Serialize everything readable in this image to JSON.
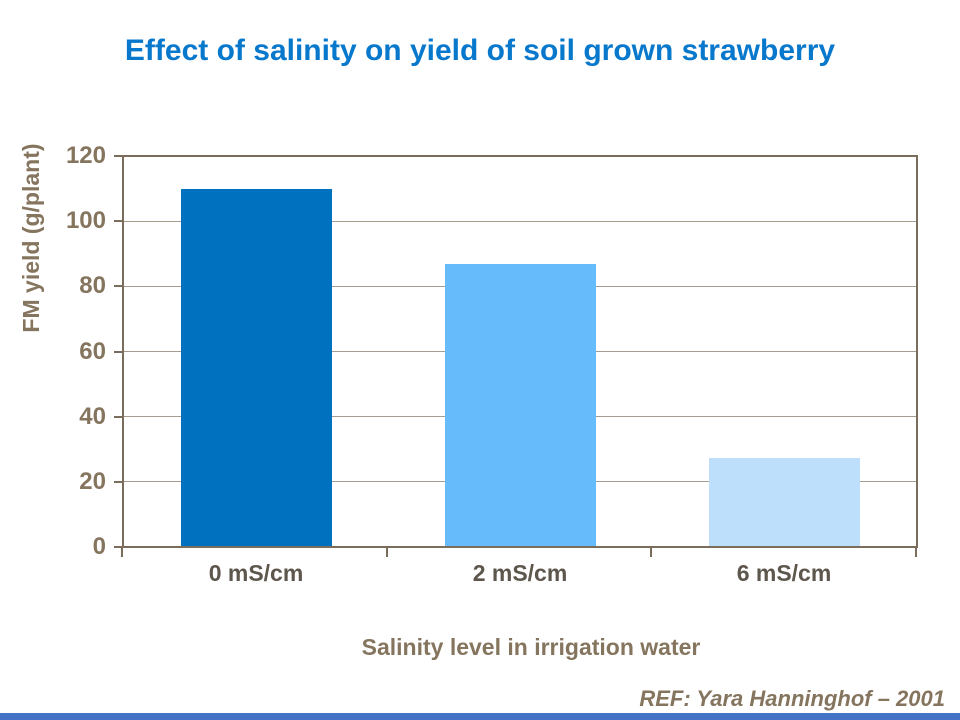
{
  "slide": {
    "background": "#FFFFFF",
    "footer": {
      "ref": "REF: Yara Hanninghof – 2001",
      "ref_color": "#85755F",
      "stripe_color": "#4472C4"
    }
  },
  "chart_data": {
    "type": "bar",
    "title": "Effect of salinity on yield of soil grown strawberry",
    "title_color": "#0878CC",
    "categories": [
      "0 mS/cm",
      "2 mS/cm",
      "6 mS/cm"
    ],
    "values": [
      110,
      87,
      27
    ],
    "bar_colors": [
      "#0071BE",
      "#66BBFB",
      "#BDDFFB"
    ],
    "xlabel": "Salinity level in irrigation water",
    "ylabel": "FM yield (g/plant)",
    "ylim": [
      0,
      120
    ],
    "yticks": [
      0,
      20,
      40,
      60,
      80,
      100,
      120
    ],
    "grid": true,
    "legend_position": "none",
    "axis_color": "#7B6D5B",
    "gridline_color": "#A59B8E",
    "ytick_label_color": "#85755F",
    "xtick_label_color": "#5D564C",
    "axis_title_color": "#85755F"
  }
}
